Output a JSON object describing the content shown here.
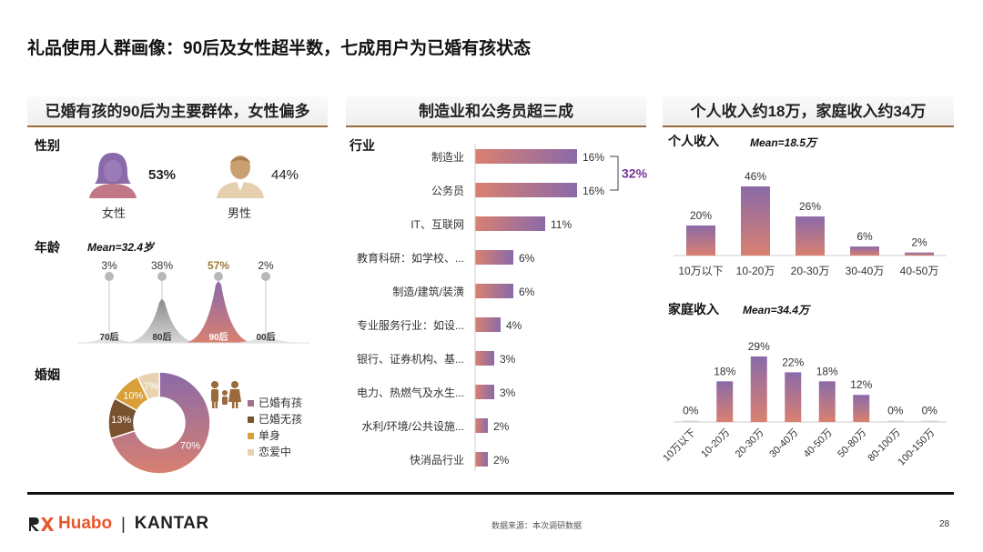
{
  "title": "礼品使用人群画像：90后及女性超半数，七成用户为已婚有孩状态",
  "sections": {
    "left_head": "已婚有孩的90后为主要群体，女性偏多",
    "mid_head": "制造业和公务员超三成",
    "right_head": "个人收入约18万，家庭收入约34万"
  },
  "gender": {
    "label": "性别",
    "female_label": "女性",
    "female_pct": "53%",
    "male_label": "男性",
    "male_pct": "44%"
  },
  "age": {
    "label": "年龄",
    "mean": "Mean=32.4岁"
  },
  "marriage": {
    "label": "婚姻"
  },
  "industry": {
    "label": "行业",
    "bracket_label": "32%"
  },
  "income": {
    "personal_label": "个人收入",
    "personal_mean": "Mean=18.5万",
    "family_label": "家庭收入",
    "family_mean": "Mean=34.4万"
  },
  "chart_data": [
    {
      "type": "area",
      "title": "年龄",
      "categories": [
        "70后",
        "80后",
        "90后",
        "00后"
      ],
      "values": [
        3,
        38,
        57,
        2
      ],
      "value_labels": [
        "3%",
        "38%",
        "57%",
        "2%"
      ]
    },
    {
      "type": "pie",
      "title": "婚姻",
      "categories": [
        "已婚有孩",
        "已婚无孩",
        "单身",
        "恋爱中"
      ],
      "values": [
        70,
        13,
        10,
        7
      ],
      "value_labels": [
        "70%",
        "13%",
        "10%",
        "7%"
      ],
      "colors": [
        "#a07088",
        "#7a5230",
        "#d9a038",
        "#e8d2b0"
      ]
    },
    {
      "type": "bar",
      "orientation": "horizontal",
      "title": "行业",
      "categories": [
        "制造业",
        "公务员",
        "IT、互联网",
        "教育科研：如学校、...",
        "制造/建筑/装潢",
        "专业服务行业：如设...",
        "银行、证券机构、基...",
        "电力、热燃气及水生...",
        "水利/环境/公共设施...",
        "快消品行业"
      ],
      "values": [
        16,
        16,
        11,
        6,
        6,
        4,
        3,
        3,
        2,
        2
      ],
      "value_labels": [
        "16%",
        "16%",
        "11%",
        "6%",
        "6%",
        "4%",
        "3%",
        "3%",
        "2%",
        "2%"
      ]
    },
    {
      "type": "bar",
      "title": "个人收入",
      "categories": [
        "10万以下",
        "10-20万",
        "20-30万",
        "30-40万",
        "40-50万"
      ],
      "values": [
        20,
        46,
        26,
        6,
        2
      ],
      "value_labels": [
        "20%",
        "46%",
        "26%",
        "6%",
        "2%"
      ]
    },
    {
      "type": "bar",
      "title": "家庭收入",
      "categories": [
        "10万以下",
        "10-20万",
        "20-30万",
        "30-40万",
        "40-50万",
        "50-80万",
        "80-100万",
        "100-150万"
      ],
      "values": [
        0,
        18,
        29,
        22,
        18,
        12,
        0,
        0
      ],
      "value_labels": [
        "0%",
        "18%",
        "29%",
        "22%",
        "18%",
        "12%",
        "0%",
        "0%"
      ]
    }
  ],
  "colors": {
    "bar_top": "#8a6aa8",
    "bar_bottom": "#d98070",
    "brand_orange": "#e8562a",
    "accent_purple": "#7a2f9a",
    "gold": "#a07a3a"
  },
  "footer": {
    "brand_left": "Huabo",
    "brand_sep": "|",
    "brand_right": "KANTAR",
    "source": "数据来源：本次调研数据",
    "page": "28"
  }
}
